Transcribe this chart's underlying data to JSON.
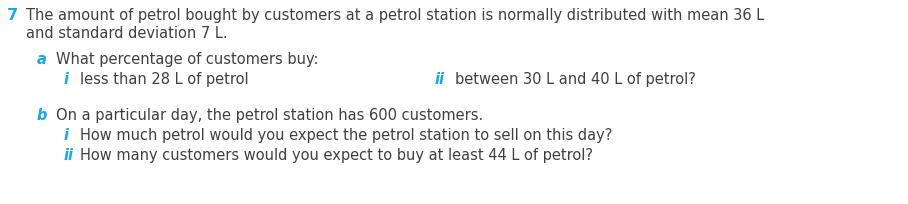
{
  "background_color": "#ffffff",
  "number": "7",
  "number_color": "#1aa7e8",
  "line1": "The amount of petrol bought by customers at a petrol station is normally distributed with mean 36 L",
  "line2": "and standard deviation 7 L.",
  "a_label": "a",
  "a_text": "What percentage of customers buy:",
  "ai_label": "i",
  "ai_text": "less than 28 L of petrol",
  "aii_label": "ii",
  "aii_text": "between 30 L and 40 L of petrol?",
  "b_label": "b",
  "b_text": "On a particular day, the petrol station has 600 customers.",
  "bi_label": "i",
  "bi_text": "How much petrol would you expect the petrol station to sell on this day?",
  "bii_label": "ii",
  "bii_text": "How many customers would you expect to buy at least 44 L of petrol?",
  "label_color": "#1aa7e8",
  "text_color": "#404040",
  "font_size": 10.5,
  "fig_width": 9.08,
  "fig_height": 2.05,
  "dpi": 100
}
